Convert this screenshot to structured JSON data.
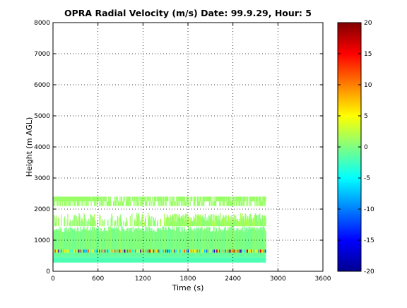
{
  "chart_data": {
    "type": "heatmap",
    "title": "OPRA Radial Velocity (m/s)  Date: 99.9.29, Hour: 5",
    "xlabel": "Time (s)",
    "ylabel": "Height (m AGL)",
    "xlim": [
      0,
      3600
    ],
    "ylim": [
      0,
      8000
    ],
    "x_ticks": [
      "0",
      "600",
      "1200",
      "1800",
      "2400",
      "3000",
      "3600"
    ],
    "y_ticks": [
      "0",
      "1000",
      "2000",
      "3000",
      "4000",
      "5000",
      "6000",
      "7000",
      "8000"
    ],
    "grid": true,
    "colorbar": {
      "colormap": "jet",
      "clim": [
        -20,
        20
      ],
      "ticks": [
        "20",
        "15",
        "10",
        "5",
        "0",
        "-5",
        "-10",
        "-15",
        "-20"
      ]
    },
    "data_extent_x": [
      0,
      2840
    ],
    "layers": [
      {
        "height_range": [
          280,
          450
        ],
        "velocity": -2,
        "coverage": "continuous"
      },
      {
        "height_range": [
          450,
          600
        ],
        "velocity": -1,
        "coverage": "continuous"
      },
      {
        "height_range": [
          600,
          700
        ],
        "velocity": "mixed (-20 to 20)",
        "coverage": "continuous"
      },
      {
        "height_range": [
          700,
          1450
        ],
        "velocity": 0,
        "coverage": "dense, ragged top"
      },
      {
        "height_range": [
          1450,
          1880
        ],
        "velocity": 1,
        "coverage": "patchy"
      },
      {
        "height_range": [
          2100,
          2400
        ],
        "velocity": 1,
        "coverage": "intermittent"
      }
    ]
  },
  "colors": {
    "background_cmap": "#ffffff",
    "grid": "#000000"
  }
}
